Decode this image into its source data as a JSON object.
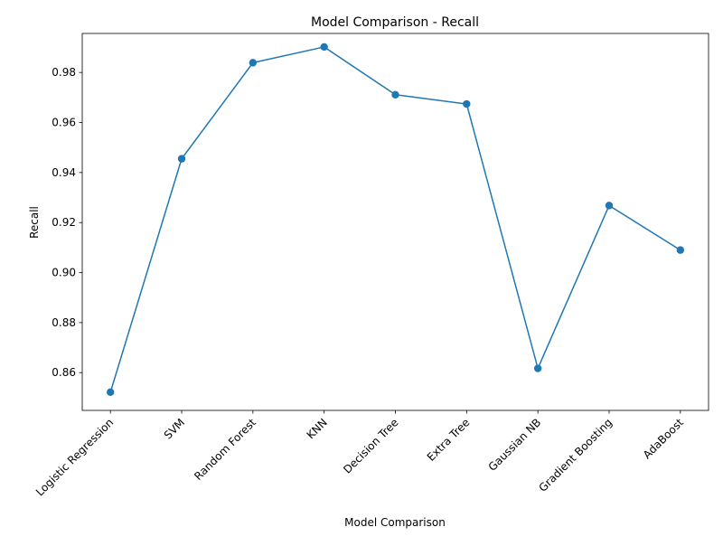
{
  "chart_data": {
    "type": "line",
    "title": "Model Comparison - Recall",
    "xlabel": "Model Comparison",
    "ylabel": "Recall",
    "categories": [
      "Logistic Regression",
      "SVM",
      "Random Forest",
      "KNN",
      "Decision Tree",
      "Extra Tree",
      "Gaussian NB",
      "Gradient Boosting",
      "AdaBoost"
    ],
    "series": [
      {
        "values": [
          0.8522,
          0.9455,
          0.9839,
          0.9902,
          0.9711,
          0.9674,
          0.8617,
          0.9268,
          0.909
        ],
        "color": "#1f77b4",
        "marker": "circle"
      }
    ],
    "ylim": [
      0.8449,
      0.9956
    ],
    "yticks": [
      0.86,
      0.88,
      0.9,
      0.92,
      0.94,
      0.96,
      0.98
    ],
    "ytick_labels": [
      "0.86",
      "0.88",
      "0.90",
      "0.92",
      "0.94",
      "0.96",
      "0.98"
    ],
    "grid": false,
    "legend": "none"
  }
}
